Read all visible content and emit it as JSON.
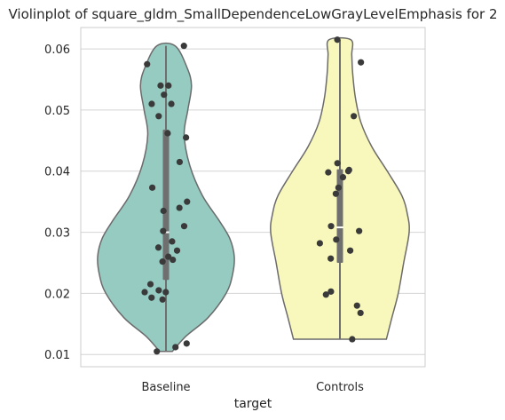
{
  "chart_data": {
    "type": "violin",
    "title": "Violinplot of square_gldm_SmallDependenceLowGrayLevelEmphasis for 2",
    "xlabel": "target",
    "ylabel": "",
    "categories": [
      "Baseline",
      "Controls"
    ],
    "ylim": [
      0.008,
      0.0635
    ],
    "yticks": [
      0.01,
      0.02,
      0.03,
      0.04,
      0.05,
      0.06
    ],
    "ytick_labels": [
      "0.01",
      "0.02",
      "0.03",
      "0.04",
      "0.05",
      "0.06"
    ],
    "grid": true,
    "colors": {
      "Baseline": "#96cbc2",
      "Controls": "#f8f8bc",
      "outline": "#6b6b6b",
      "points": "#3a3a3a",
      "box": "#6f6f6f"
    },
    "series": [
      {
        "category": "Baseline",
        "min": 0.0105,
        "max": 0.0605,
        "q1": 0.0222,
        "median": 0.03,
        "q3": 0.0468,
        "density": [
          [
            0.0105,
            0.7
          ],
          [
            0.013,
            2.2
          ],
          [
            0.016,
            4.6
          ],
          [
            0.02,
            6.6
          ],
          [
            0.023,
            7.3
          ],
          [
            0.026,
            7.5
          ],
          [
            0.029,
            7.0
          ],
          [
            0.032,
            5.8
          ],
          [
            0.036,
            4.0
          ],
          [
            0.041,
            2.6
          ],
          [
            0.046,
            2.0
          ],
          [
            0.05,
            2.4
          ],
          [
            0.054,
            2.8
          ],
          [
            0.057,
            2.3
          ],
          [
            0.0605,
            1.0
          ]
        ],
        "points": [
          0.0605,
          0.0575,
          0.054,
          0.054,
          0.0525,
          0.051,
          0.051,
          0.049,
          0.0462,
          0.0455,
          0.0415,
          0.0373,
          0.035,
          0.034,
          0.0335,
          0.031,
          0.0302,
          0.0285,
          0.0275,
          0.027,
          0.026,
          0.0255,
          0.0252,
          0.0215,
          0.0205,
          0.0202,
          0.0202,
          0.0193,
          0.019,
          0.0118,
          0.0112,
          0.0105
        ]
      },
      {
        "category": "Controls",
        "min": 0.0125,
        "max": 0.0615,
        "q1": 0.025,
        "median": 0.0308,
        "q3": 0.0403,
        "density": [
          [
            0.0125,
            5.1
          ],
          [
            0.016,
            5.7
          ],
          [
            0.02,
            6.4
          ],
          [
            0.025,
            7.0
          ],
          [
            0.03,
            7.6
          ],
          [
            0.033,
            7.4
          ],
          [
            0.036,
            6.8
          ],
          [
            0.04,
            5.2
          ],
          [
            0.044,
            3.5
          ],
          [
            0.048,
            2.3
          ],
          [
            0.052,
            1.7
          ],
          [
            0.056,
            1.4
          ],
          [
            0.059,
            1.3
          ],
          [
            0.0615,
            1.2
          ]
        ],
        "points": [
          0.0615,
          0.0578,
          0.049,
          0.0413,
          0.0402,
          0.04,
          0.0398,
          0.039,
          0.0373,
          0.0363,
          0.031,
          0.0302,
          0.0288,
          0.0282,
          0.027,
          0.0257,
          0.0203,
          0.0198,
          0.018,
          0.0168,
          0.0125
        ]
      }
    ]
  }
}
